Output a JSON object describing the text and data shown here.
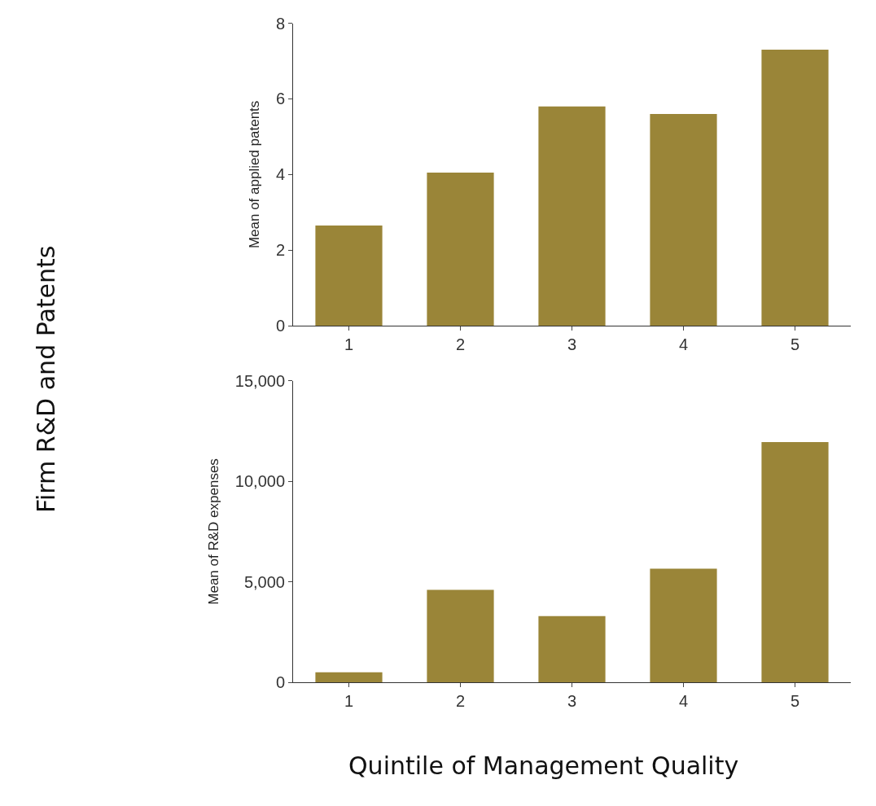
{
  "chart_data": [
    {
      "type": "bar",
      "ylabel": "Mean of applied patents",
      "categories": [
        "1",
        "2",
        "3",
        "4",
        "5"
      ],
      "values": [
        2.65,
        4.05,
        5.8,
        5.6,
        7.3
      ],
      "color": "#9a8538",
      "ylim": [
        0,
        8
      ],
      "yticks": [
        0,
        2,
        4,
        6,
        8
      ],
      "annotations": [
        "Firm R&D and Patents"
      ]
    },
    {
      "type": "bar",
      "ylabel": "Mean of R&D expenses",
      "xlabel": "Quintile of Management Quality",
      "categories": [
        "1",
        "2",
        "3",
        "4",
        "5"
      ],
      "values": [
        500,
        4600,
        3300,
        5650,
        11950
      ],
      "color": "#9a8538",
      "ylim": [
        0,
        15000
      ],
      "yticks": [
        {
          "value": 0,
          "label": "0"
        },
        {
          "value": 5000,
          "label": "5,000"
        },
        {
          "value": 10000,
          "label": "10,000"
        },
        {
          "value": 15000,
          "label": "15,000"
        }
      ]
    }
  ]
}
